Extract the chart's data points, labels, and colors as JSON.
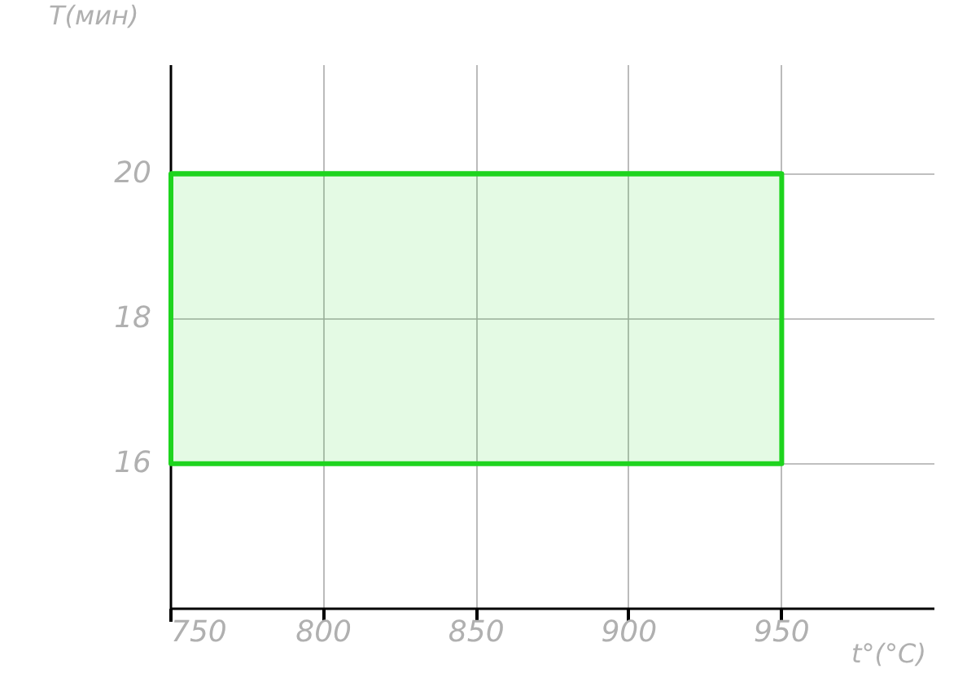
{
  "chart_data": {
    "type": "line",
    "xlabel": "t°(°C)",
    "ylabel": "T(мин)",
    "series": [
      {
        "x": [
          750,
          950
        ],
        "values": [
          20,
          20
        ],
        "lower": [
          16,
          16
        ],
        "upper": [
          20,
          20
        ],
        "color": "#1ed41e"
      }
    ],
    "xlim": [
      750,
      1000
    ],
    "ylim": [
      14,
      21.5
    ],
    "xticks": [
      750,
      800,
      850,
      900,
      950
    ],
    "yticks": [
      16,
      18,
      20
    ],
    "grid": true
  }
}
